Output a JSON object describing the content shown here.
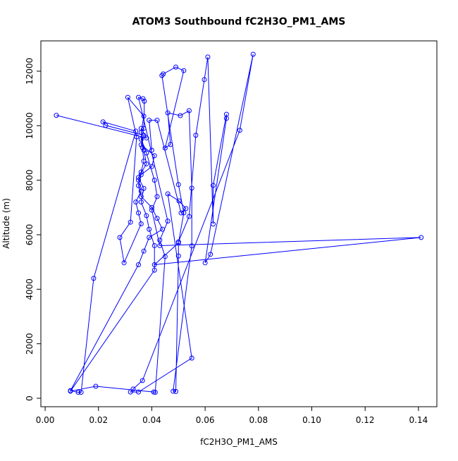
{
  "chart_data": {
    "type": "line",
    "title": "ATOM3 Southbound fC2H3O_PM1_AMS",
    "x_label": "fC2H3O_PM1_AMS",
    "y_label": "Altitude (m)",
    "color": "#0000ff",
    "markers": true,
    "x": [
      0.0042,
      0.038,
      0.036,
      0.0365,
      0.037,
      0.036,
      0.035,
      0.036,
      0.04,
      0.042,
      0.044,
      0.039,
      0.037,
      0.035,
      0.0095,
      0.0124,
      0.0135,
      0.0182,
      0.034,
      0.0217,
      0.0227,
      0.037,
      0.036,
      0.041,
      0.04,
      0.036,
      0.035,
      0.036,
      0.034,
      0.035,
      0.036,
      0.0296,
      0.028,
      0.032,
      0.0343,
      0.031,
      0.037,
      0.036,
      0.037,
      0.038,
      0.035,
      0.037,
      0.036,
      0.038,
      0.039,
      0.041,
      0.041,
      0.0095,
      0.019,
      0.0407,
      0.0413,
      0.045,
      0.043,
      0.046,
      0.035,
      0.0367,
      0.0372,
      0.037,
      0.036,
      0.038,
      0.041,
      0.042,
      0.04,
      0.043,
      0.141,
      0.041,
      0.05,
      0.052,
      0.05,
      0.0438,
      0.0443,
      0.049,
      0.052,
      0.045,
      0.047,
      0.046,
      0.0507,
      0.054,
      0.055,
      0.055,
      0.048,
      0.049,
      0.05,
      0.05,
      0.054,
      0.0565,
      0.0597,
      0.061,
      0.063,
      0.063,
      0.068,
      0.068,
      0.06,
      0.062,
      0.078,
      0.073,
      0.0365,
      0.033,
      0.032,
      0.035,
      0.055,
      0.046,
      0.0502,
      0.0528,
      0.051,
      0.042,
      0.039,
      0.04
    ],
    "values": [
      10380,
      9550,
      9900,
      9200,
      8700,
      8300,
      7800,
      7400,
      7000,
      6600,
      6200,
      5900,
      5400,
      4900,
      280,
      220,
      220,
      4400,
      9800,
      10140,
      10010,
      9650,
      9300,
      8900,
      8500,
      8200,
      8000,
      7600,
      7200,
      6800,
      6400,
      4970,
      5900,
      6460,
      9590,
      11040,
      10350,
      9750,
      9100,
      8600,
      8100,
      7700,
      7200,
      6700,
      6200,
      5600,
      4700,
      260,
      440,
      230,
      220,
      5200,
      5800,
      6500,
      11040,
      10990,
      10900,
      9900,
      9500,
      9000,
      8000,
      7400,
      6900,
      5600,
      5900,
      4900,
      5700,
      6800,
      7840,
      11840,
      11900,
      12150,
      12020,
      9180,
      9310,
      10470,
      10370,
      10550,
      7710,
      5590,
      260,
      250,
      5220,
      5740,
      6670,
      9650,
      11690,
      12520,
      6390,
      7810,
      10420,
      10270,
      4970,
      5280,
      12620,
      9830,
      650,
      340,
      230,
      230,
      1474,
      7500,
      7240,
      6960,
      6800,
      10200,
      10200,
      9100
    ],
    "xlim": [
      -0.0016,
      0.1469
    ],
    "ylim": [
      -310,
      13111
    ],
    "xticks": [
      {
        "value": 0,
        "label": "0.00"
      },
      {
        "value": 0.02,
        "label": "0.02"
      },
      {
        "value": 0.04,
        "label": "0.04"
      },
      {
        "value": 0.06,
        "label": "0.06"
      },
      {
        "value": 0.08,
        "label": "0.08"
      },
      {
        "value": 0.1,
        "label": "0.10"
      },
      {
        "value": 0.12,
        "label": "0.12"
      },
      {
        "value": 0.14,
        "label": "0.14"
      }
    ],
    "yticks": [
      0,
      2000,
      4000,
      6000,
      8000,
      10000,
      12000
    ]
  }
}
